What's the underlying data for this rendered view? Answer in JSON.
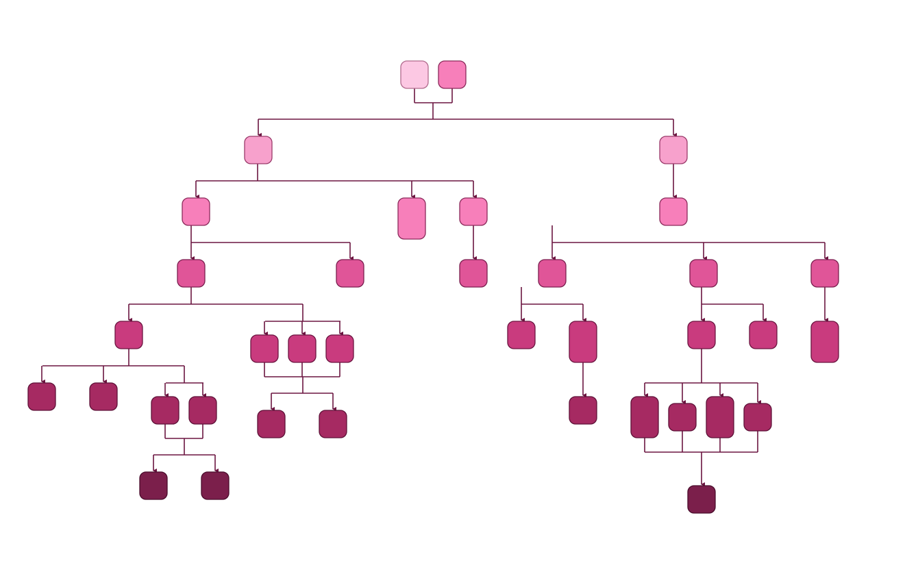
{
  "diagram": {
    "type": "family-tree",
    "edge_color": "#6b1540",
    "level_colors": {
      "0a": "#fcc8e3",
      "0b": "#f77fba",
      "1": "#f7a1cc",
      "2": "#f77fba",
      "3": "#e05598",
      "4": "#c93b7e",
      "5": "#a62a62",
      "6": "#7b1f4b"
    },
    "nodes": [
      {
        "id": "A",
        "level": "0a"
      },
      {
        "id": "B",
        "level": "0b"
      },
      {
        "id": "C",
        "level": "1"
      },
      {
        "id": "D",
        "level": "1"
      },
      {
        "id": "E",
        "level": "2"
      },
      {
        "id": "F",
        "level": "2"
      },
      {
        "id": "G",
        "level": "2"
      },
      {
        "id": "H",
        "level": "2"
      },
      {
        "id": "I",
        "level": "3"
      },
      {
        "id": "J",
        "level": "3"
      },
      {
        "id": "K",
        "level": "3"
      },
      {
        "id": "L",
        "level": "3"
      },
      {
        "id": "M",
        "level": "3"
      },
      {
        "id": "N",
        "level": "3"
      },
      {
        "id": "O",
        "level": "4"
      },
      {
        "id": "P",
        "level": "4"
      },
      {
        "id": "Q",
        "level": "4"
      },
      {
        "id": "R",
        "level": "4"
      },
      {
        "id": "AA",
        "level": "4"
      },
      {
        "id": "AB",
        "level": "4"
      },
      {
        "id": "AD",
        "level": "4"
      },
      {
        "id": "AE",
        "level": "4"
      },
      {
        "id": "AK",
        "level": "4"
      },
      {
        "id": "U",
        "level": "5"
      },
      {
        "id": "V",
        "level": "5"
      },
      {
        "id": "W",
        "level": "5"
      },
      {
        "id": "X",
        "level": "5"
      },
      {
        "id": "S",
        "level": "5"
      },
      {
        "id": "T",
        "level": "5"
      },
      {
        "id": "AC",
        "level": "5"
      },
      {
        "id": "AF",
        "level": "5"
      },
      {
        "id": "AG",
        "level": "5"
      },
      {
        "id": "AH",
        "level": "5"
      },
      {
        "id": "AI",
        "level": "5"
      },
      {
        "id": "Y",
        "level": "6"
      },
      {
        "id": "Z",
        "level": "6"
      },
      {
        "id": "AJ",
        "level": "6"
      }
    ],
    "relations": [
      {
        "parents": [
          "A",
          "B"
        ],
        "children": [
          "C",
          "D"
        ]
      },
      {
        "parents": [
          "C"
        ],
        "children": [
          "E",
          "F",
          "G"
        ]
      },
      {
        "parents": [
          "D"
        ],
        "children": [
          "H"
        ]
      },
      {
        "parents": [
          "E"
        ],
        "children": [
          "I",
          "J"
        ]
      },
      {
        "parents": [
          "G"
        ],
        "children": [
          "K"
        ]
      },
      {
        "parents": [
          "H"
        ],
        "children": [
          "L",
          "M",
          "N"
        ]
      },
      {
        "parents": [
          "I"
        ],
        "children": [
          "O",
          "P",
          "Q",
          "R"
        ]
      },
      {
        "parents": [
          "P",
          "Q",
          "R"
        ],
        "children": [
          "S",
          "T"
        ]
      },
      {
        "parents": [
          "O"
        ],
        "children": [
          "U",
          "V",
          "W",
          "X"
        ]
      },
      {
        "parents": [
          "W",
          "X"
        ],
        "children": [
          "Y",
          "Z"
        ]
      },
      {
        "parents": [
          "L"
        ],
        "children": [
          "AA",
          "AB"
        ]
      },
      {
        "parents": [
          "AB"
        ],
        "children": [
          "AC"
        ]
      },
      {
        "parents": [
          "M"
        ],
        "children": [
          "AD",
          "AE"
        ]
      },
      {
        "parents": [
          "AD"
        ],
        "children": [
          "AF",
          "AG",
          "AH",
          "AI"
        ]
      },
      {
        "parents": [
          "AF",
          "AG",
          "AH",
          "AI"
        ],
        "children": [
          "AJ"
        ]
      },
      {
        "parents": [
          "N"
        ],
        "children": [
          "AK"
        ]
      }
    ]
  }
}
